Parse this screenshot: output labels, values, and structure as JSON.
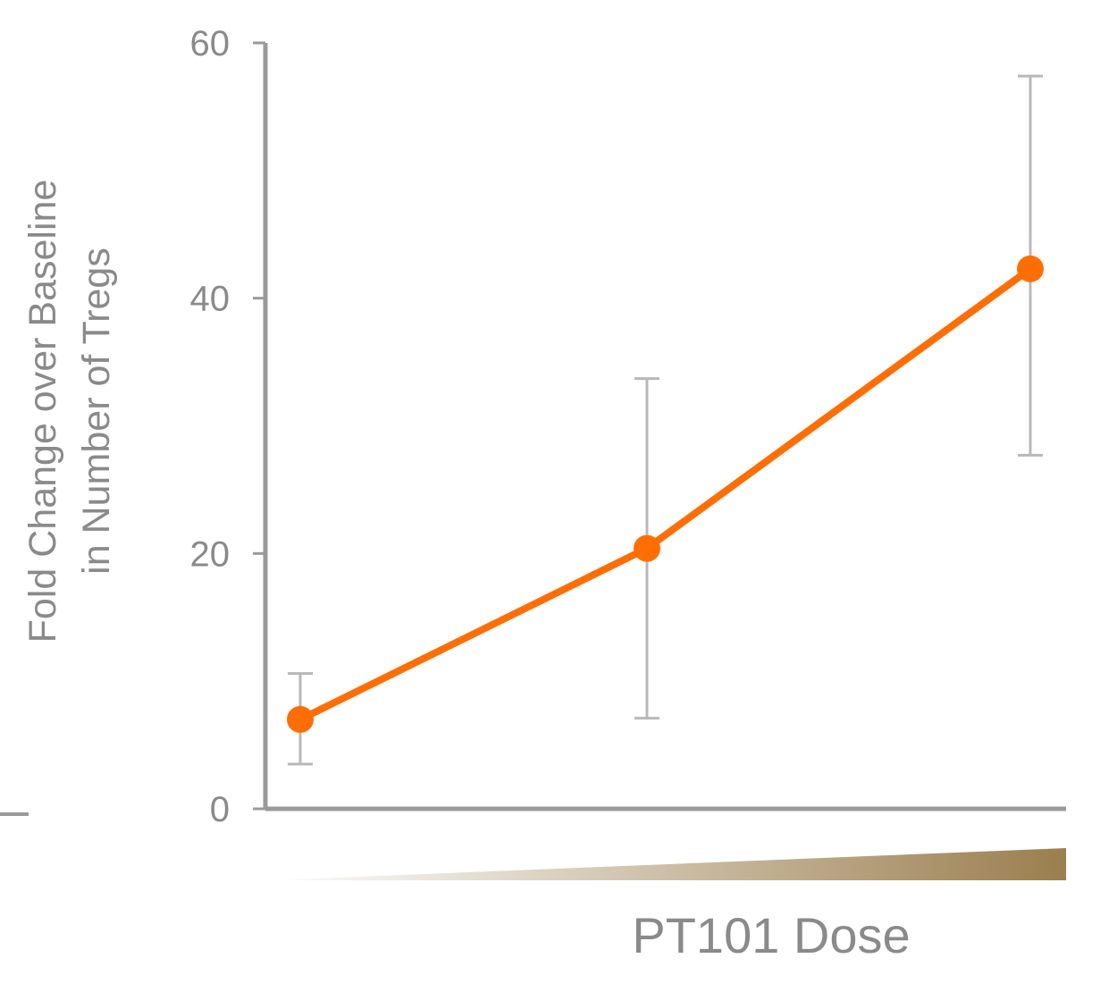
{
  "chart_data": {
    "type": "line",
    "title": "",
    "xlabel": "PT101 Dose",
    "ylabel_lines": [
      "Fold Change over Baseline",
      "in Number of Tregs"
    ],
    "ylim": [
      0,
      60
    ],
    "yticks": [
      0,
      20,
      40,
      60
    ],
    "ytick_labels": [
      "0",
      "20",
      "40",
      "60"
    ],
    "grid": false,
    "legend": "none",
    "x": [
      1,
      2,
      3
    ],
    "series": [
      {
        "values": [
          7,
          20.4,
          42.3
        ],
        "error_low": [
          3.5,
          7.1,
          27.7
        ],
        "error_high": [
          10.6,
          33.7,
          57.4
        ],
        "color": "#ff6e05"
      }
    ],
    "dose_wedge_color": "#9a7e4e"
  }
}
